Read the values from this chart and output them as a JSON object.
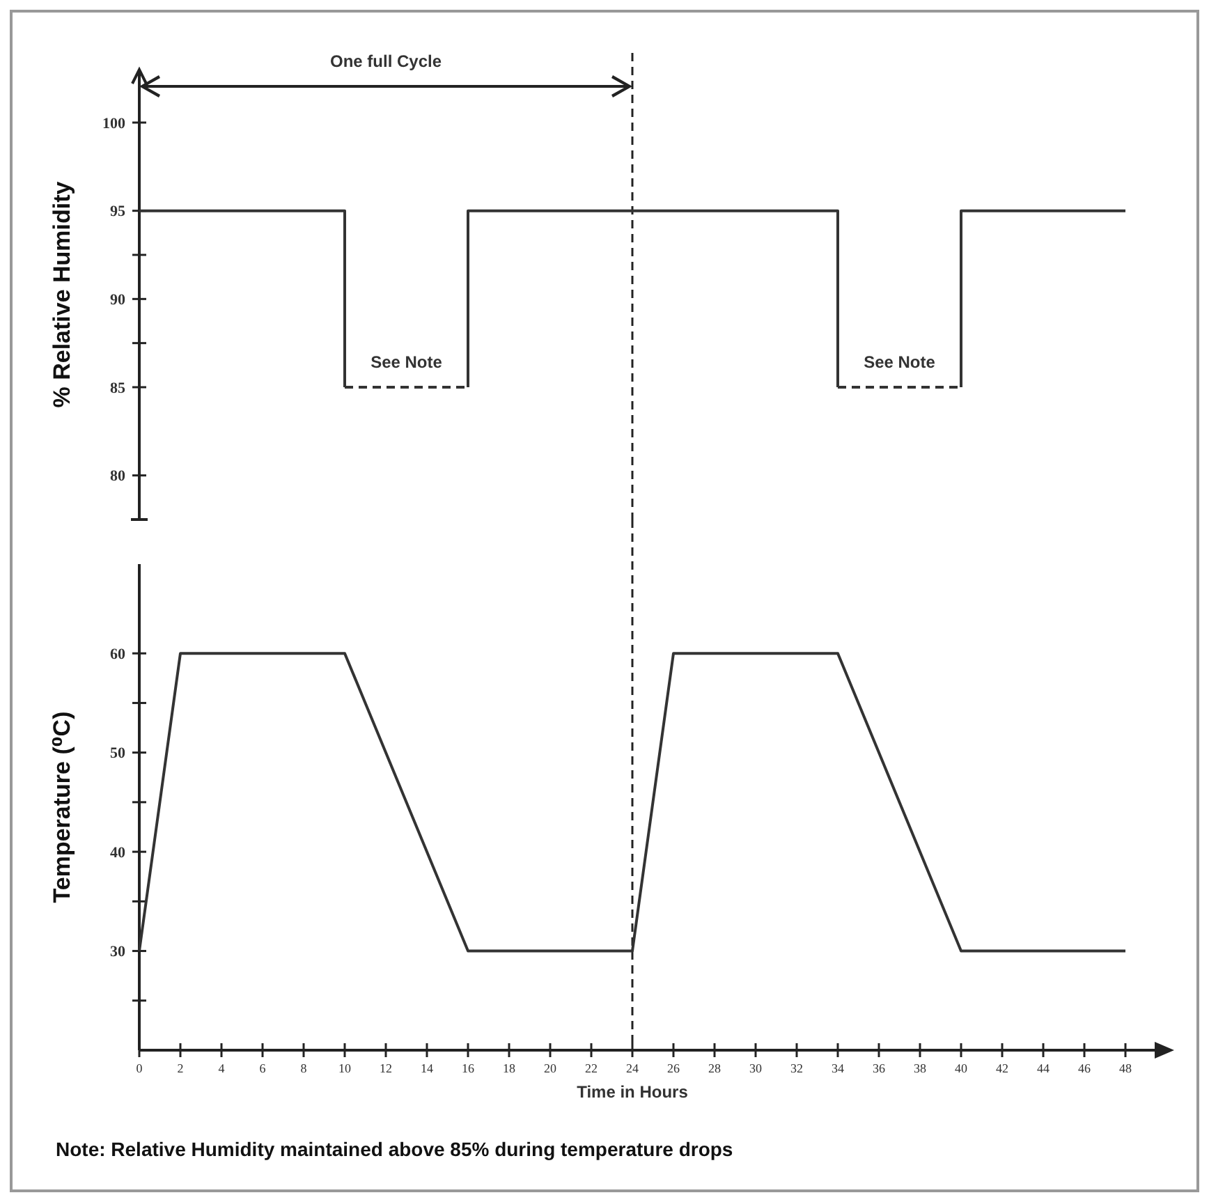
{
  "chart_data": [
    {
      "type": "line",
      "ylabel": "% Relative Humidity",
      "xlim": [
        0,
        48
      ],
      "xticks": [
        0,
        2,
        4,
        6,
        8,
        10,
        12,
        14,
        16,
        18,
        20,
        22,
        24,
        26,
        28,
        30,
        32,
        34,
        36,
        38,
        40,
        42,
        44,
        46,
        48
      ],
      "ylim": [
        77.5,
        103
      ],
      "yticks": [
        80,
        85,
        {
          "value": 87.5,
          "label": null
        },
        90,
        {
          "value": 92.5,
          "label": null
        },
        95,
        100
      ],
      "tick_labels": "y",
      "series": [
        {
          "color": "#333333",
          "x": [
            0,
            10,
            10
          ],
          "values": [
            95,
            95,
            85
          ]
        },
        {
          "color": "#333333",
          "line_style": "dashed",
          "x": [
            10,
            16
          ],
          "values": [
            85,
            85
          ]
        },
        {
          "color": "#333333",
          "x": [
            16,
            16,
            34,
            34
          ],
          "values": [
            85,
            95,
            95,
            85
          ]
        },
        {
          "color": "#333333",
          "line_style": "dashed",
          "x": [
            34,
            40
          ],
          "values": [
            85,
            85
          ]
        },
        {
          "color": "#333333",
          "x": [
            40,
            40,
            48
          ],
          "values": [
            85,
            95,
            95
          ]
        }
      ],
      "ref_lines": [
        {
          "axis": "x",
          "value": 24,
          "line_style": "dashed",
          "color": "#222222"
        }
      ],
      "annotations": [
        "One full Cycle",
        "See Note",
        "See Note"
      ]
    },
    {
      "type": "line",
      "xlabel": "Time in Hours",
      "ylabel": "Temperature (⁰C)",
      "xlim": [
        0,
        48
      ],
      "xticks": [
        0,
        2,
        4,
        6,
        8,
        10,
        12,
        14,
        16,
        18,
        20,
        22,
        24,
        26,
        28,
        30,
        32,
        34,
        36,
        38,
        40,
        42,
        44,
        46,
        48
      ],
      "ylim": [
        20,
        69
      ],
      "yticks": [
        {
          "value": 25,
          "label": null
        },
        30,
        {
          "value": 35,
          "label": null
        },
        40,
        {
          "value": 45,
          "label": null
        },
        50,
        {
          "value": 55,
          "label": null
        },
        60
      ],
      "series": [
        {
          "color": "#333333",
          "x": [
            0,
            2,
            10,
            16,
            24,
            26,
            34,
            40,
            48
          ],
          "values": [
            30,
            60,
            60,
            30,
            30,
            60,
            60,
            30,
            30
          ]
        }
      ],
      "ref_lines": [
        {
          "axis": "x",
          "value": 24,
          "line_style": "dashed",
          "color": "#222222"
        }
      ],
      "annotations": [
        "Note: Relative Humidity maintained above 85% during temperature drops"
      ]
    }
  ]
}
